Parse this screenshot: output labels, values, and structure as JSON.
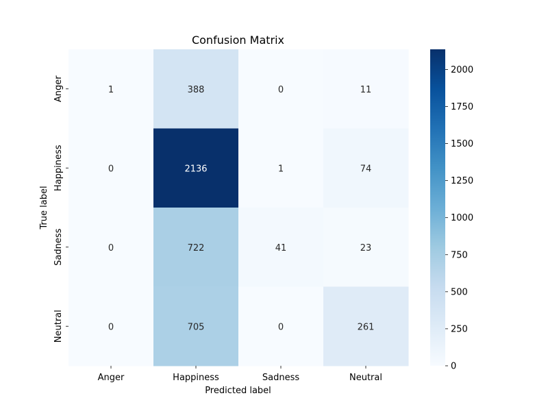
{
  "chart_data": {
    "type": "heatmap",
    "title": "Confusion Matrix",
    "xlabel": "Predicted label",
    "ylabel": "True label",
    "x_categories": [
      "Anger",
      "Happiness",
      "Sadness",
      "Neutral"
    ],
    "y_categories": [
      "Anger",
      "Happiness",
      "Sadness",
      "Neutral"
    ],
    "values": [
      [
        1,
        388,
        0,
        11
      ],
      [
        0,
        2136,
        1,
        74
      ],
      [
        0,
        722,
        41,
        23
      ],
      [
        0,
        705,
        0,
        261
      ]
    ],
    "colormap": "Blues",
    "colorbar": {
      "min": 0,
      "max": 2136,
      "ticks": [
        0,
        250,
        500,
        750,
        1000,
        1250,
        1500,
        1750,
        2000
      ]
    },
    "grid": false
  }
}
